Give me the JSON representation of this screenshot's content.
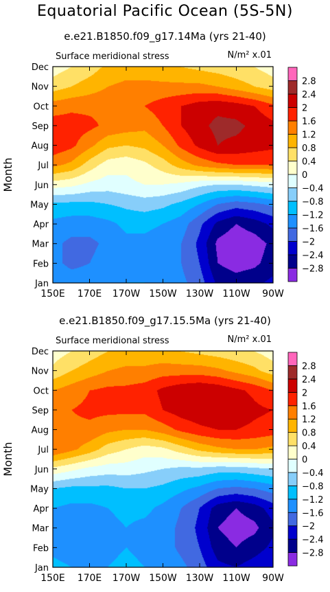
{
  "title": "Equatorial Pacific Ocean (5S-5N)",
  "colorbar": {
    "levels": [
      -2.8,
      -2.4,
      -2,
      -1.6,
      -1.2,
      -0.8,
      -0.4,
      0,
      0.4,
      0.8,
      1.2,
      1.6,
      2,
      2.4,
      2.8
    ],
    "labels": [
      "−2.8",
      "−2.4",
      "−2",
      "−1.6",
      "−1.2",
      "−0.8",
      "−0.4",
      "0",
      "0.4",
      "0.8",
      "1.2",
      "1.6",
      "2",
      "2.4",
      "2.8"
    ],
    "colors": [
      "#8a2be2",
      "#00008b",
      "#0000cd",
      "#4169e1",
      "#1e90ff",
      "#00bfff",
      "#87cefa",
      "#e0ffff",
      "#ffffcc",
      "#ffe066",
      "#ffb400",
      "#ff7f00",
      "#ff2200",
      "#cc0000",
      "#9e2a2a",
      "#ff66bb"
    ]
  },
  "chart_data": [
    {
      "type": "heatmap",
      "title": "e.e21.B1850.f09_g17.14Ma (yrs 21-40)",
      "subtitle": "Surface meridional stress",
      "units": "N/m² x.01",
      "ylabel": "Month",
      "xlabel": "",
      "x_ticks": [
        "150E",
        "170E",
        "170W",
        "150W",
        "130W",
        "110W",
        "90W"
      ],
      "y_ticks": [
        "Jan",
        "Feb",
        "Mar",
        "Apr",
        "May",
        "Jun",
        "Jul",
        "Aug",
        "Sep",
        "Oct",
        "Nov",
        "Dec"
      ],
      "x": [
        150,
        160,
        170,
        180,
        190,
        200,
        210,
        220,
        230,
        240,
        250,
        260,
        270
      ],
      "values": [
        [
          -1.3,
          -1.4,
          -1.4,
          -1.3,
          -1.2,
          -1.2,
          -1.3,
          -1.5,
          -1.8,
          -2.5,
          -2.6,
          -2.5,
          -2.3
        ],
        [
          -1.5,
          -1.7,
          -1.6,
          -1.4,
          -1.3,
          -1.3,
          -1.4,
          -1.6,
          -2.0,
          -2.8,
          -3.0,
          -2.9,
          -2.6
        ],
        [
          -1.5,
          -1.7,
          -1.7,
          -1.5,
          -1.3,
          -1.3,
          -1.4,
          -1.6,
          -2.1,
          -2.9,
          -3.1,
          -3.0,
          -2.7
        ],
        [
          -1.3,
          -1.4,
          -1.4,
          -1.3,
          -1.1,
          -1.1,
          -1.2,
          -1.4,
          -1.9,
          -2.5,
          -2.8,
          -2.6,
          -2.3
        ],
        [
          -0.9,
          -0.9,
          -0.9,
          -0.8,
          -0.7,
          -0.6,
          -0.7,
          -0.9,
          -1.2,
          -1.6,
          -1.8,
          -1.7,
          -1.5
        ],
        [
          0.2,
          0.1,
          -0.1,
          -0.2,
          -0.1,
          0.0,
          0.0,
          -0.1,
          -0.3,
          -0.4,
          -0.4,
          -0.3,
          -0.2
        ],
        [
          1.3,
          1.1,
          0.6,
          0.2,
          0.1,
          0.3,
          0.6,
          1.0,
          1.3,
          1.5,
          1.6,
          1.6,
          1.6
        ],
        [
          1.9,
          1.7,
          1.3,
          0.9,
          0.8,
          0.9,
          1.2,
          1.7,
          2.1,
          2.4,
          2.3,
          2.2,
          2.1
        ],
        [
          1.8,
          1.8,
          1.7,
          1.5,
          1.4,
          1.3,
          1.6,
          2.0,
          2.3,
          2.5,
          2.5,
          2.3,
          2.1
        ],
        [
          1.4,
          1.5,
          1.5,
          1.5,
          1.4,
          1.6,
          1.8,
          2.0,
          2.2,
          2.3,
          2.2,
          2.0,
          1.7
        ],
        [
          0.6,
          0.8,
          1.0,
          1.2,
          1.3,
          1.3,
          1.3,
          1.3,
          1.3,
          1.2,
          1.0,
          0.8,
          0.6
        ],
        [
          0.2,
          0.4,
          0.6,
          0.9,
          1.0,
          1.0,
          0.9,
          0.8,
          0.7,
          0.6,
          0.5,
          0.4,
          0.2
        ]
      ]
    },
    {
      "type": "heatmap",
      "title": "e.e21.B1850.f09_g17.15.5Ma (yrs 21-40)",
      "subtitle": "Surface meridional stress",
      "units": "N/m² x.01",
      "ylabel": "Month",
      "xlabel": "",
      "x_ticks": [
        "150E",
        "170E",
        "170W",
        "150W",
        "130W",
        "110W",
        "90W"
      ],
      "y_ticks": [
        "Jan",
        "Feb",
        "Mar",
        "Apr",
        "May",
        "Jun",
        "Jul",
        "Aug",
        "Sep",
        "Oct",
        "Nov",
        "Dec"
      ],
      "x": [
        150,
        160,
        170,
        180,
        190,
        200,
        210,
        220,
        230,
        240,
        250,
        260,
        270
      ],
      "values": [
        [
          -1.1,
          -1.2,
          -1.3,
          -1.2,
          -1.1,
          -1.2,
          -1.3,
          -1.5,
          -1.8,
          -2.3,
          -2.4,
          -2.2,
          -2.0
        ],
        [
          -1.3,
          -1.4,
          -1.4,
          -1.3,
          -1.2,
          -1.3,
          -1.4,
          -1.7,
          -2.0,
          -2.6,
          -2.8,
          -2.6,
          -2.3
        ],
        [
          -1.3,
          -1.4,
          -1.4,
          -1.3,
          -1.2,
          -1.3,
          -1.4,
          -1.7,
          -2.1,
          -2.8,
          -3.0,
          -2.9,
          -2.5
        ],
        [
          -1.2,
          -1.3,
          -1.3,
          -1.2,
          -1.1,
          -1.1,
          -1.3,
          -1.6,
          -2.0,
          -2.6,
          -2.8,
          -2.6,
          -2.2
        ],
        [
          -0.8,
          -0.9,
          -0.9,
          -0.9,
          -0.8,
          -0.8,
          -0.9,
          -1.1,
          -1.3,
          -1.6,
          -1.7,
          -1.6,
          -1.4
        ],
        [
          0.3,
          0.1,
          -0.1,
          -0.2,
          -0.2,
          -0.3,
          -0.4,
          -0.5,
          -0.5,
          -0.6,
          -0.6,
          -0.5,
          -0.4
        ],
        [
          1.6,
          1.3,
          1.0,
          0.6,
          0.4,
          0.2,
          0.3,
          0.6,
          0.9,
          1.1,
          1.2,
          1.2,
          1.1
        ],
        [
          1.5,
          1.5,
          1.5,
          1.3,
          1.2,
          1.2,
          1.4,
          1.7,
          1.9,
          2.0,
          2.0,
          1.9,
          1.8
        ],
        [
          1.5,
          1.6,
          1.7,
          1.7,
          1.7,
          1.7,
          2.0,
          2.2,
          2.3,
          2.4,
          2.3,
          2.1,
          2.0
        ],
        [
          1.2,
          1.4,
          1.6,
          1.7,
          1.7,
          1.8,
          2.1,
          2.3,
          2.4,
          2.3,
          2.1,
          1.9,
          1.6
        ],
        [
          0.5,
          0.8,
          1.0,
          1.2,
          1.3,
          1.3,
          1.4,
          1.4,
          1.4,
          1.3,
          1.1,
          0.9,
          0.6
        ],
        [
          0.2,
          0.4,
          0.6,
          0.8,
          0.9,
          0.9,
          0.9,
          0.8,
          0.7,
          0.6,
          0.5,
          0.4,
          0.2
        ]
      ]
    }
  ]
}
